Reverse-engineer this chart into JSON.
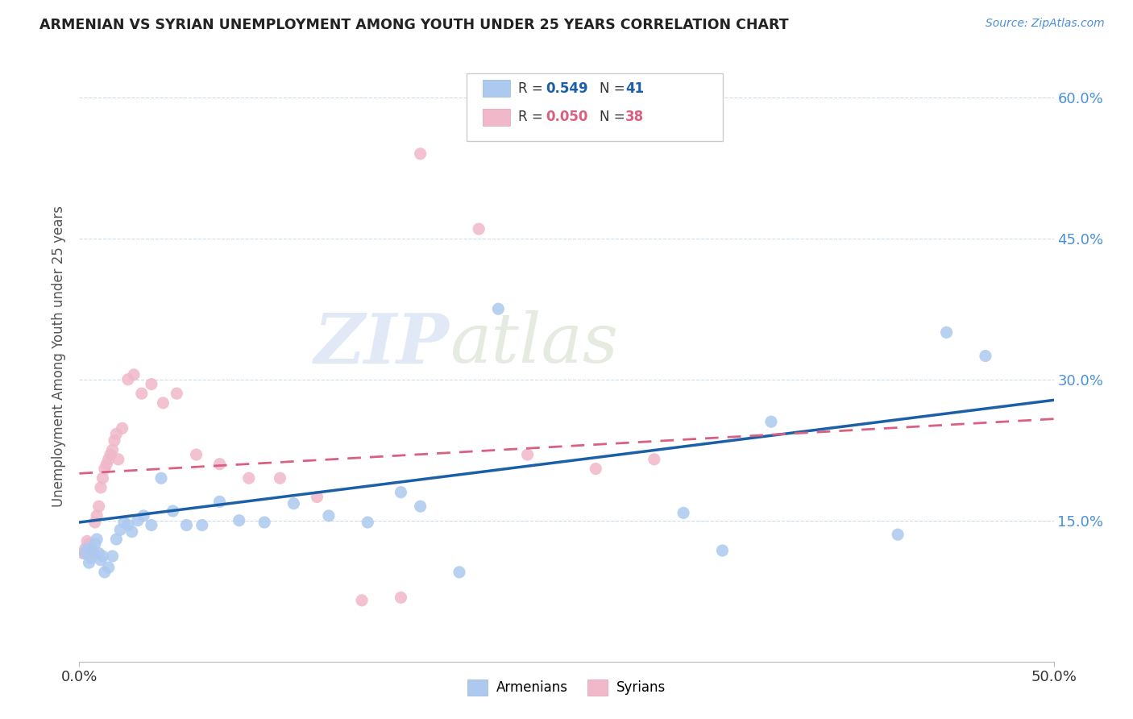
{
  "title": "ARMENIAN VS SYRIAN UNEMPLOYMENT AMONG YOUTH UNDER 25 YEARS CORRELATION CHART",
  "source": "Source: ZipAtlas.com",
  "ylabel": "Unemployment Among Youth under 25 years",
  "xlim": [
    0.0,
    0.5
  ],
  "ylim": [
    0.0,
    0.65
  ],
  "xticks": [
    0.0,
    0.5
  ],
  "xticklabels": [
    "0.0%",
    "50.0%"
  ],
  "yticks": [
    0.15,
    0.3,
    0.45,
    0.6
  ],
  "yticklabels": [
    "15.0%",
    "30.0%",
    "45.0%",
    "60.0%"
  ],
  "legend_r_armenian": "0.549",
  "legend_n_armenian": "41",
  "legend_r_syrian": "0.050",
  "legend_n_syrian": "38",
  "armenian_color": "#adc9ef",
  "syrian_color": "#f0b8c8",
  "armenian_line_color": "#1a5fa8",
  "syrian_line_color": "#d96080",
  "background_color": "#ffffff",
  "watermark_zip": "ZIP",
  "watermark_atlas": "atlas",
  "arm_line_x0": 0.0,
  "arm_line_y0": 0.148,
  "arm_line_x1": 0.5,
  "arm_line_y1": 0.278,
  "syr_line_x0": 0.0,
  "syr_line_y0": 0.2,
  "syr_line_x1": 0.5,
  "syr_line_y1": 0.258,
  "armenian_x": [
    0.003,
    0.004,
    0.005,
    0.006,
    0.007,
    0.008,
    0.009,
    0.01,
    0.011,
    0.012,
    0.013,
    0.015,
    0.017,
    0.019,
    0.021,
    0.023,
    0.025,
    0.027,
    0.03,
    0.033,
    0.037,
    0.042,
    0.048,
    0.055,
    0.063,
    0.072,
    0.082,
    0.095,
    0.11,
    0.128,
    0.148,
    0.165,
    0.175,
    0.195,
    0.215,
    0.31,
    0.33,
    0.355,
    0.42,
    0.445,
    0.465
  ],
  "armenian_y": [
    0.115,
    0.12,
    0.105,
    0.11,
    0.118,
    0.125,
    0.13,
    0.115,
    0.108,
    0.112,
    0.095,
    0.1,
    0.112,
    0.13,
    0.14,
    0.148,
    0.145,
    0.138,
    0.15,
    0.155,
    0.145,
    0.195,
    0.16,
    0.145,
    0.145,
    0.17,
    0.15,
    0.148,
    0.168,
    0.155,
    0.148,
    0.18,
    0.165,
    0.095,
    0.375,
    0.158,
    0.118,
    0.255,
    0.135,
    0.35,
    0.325
  ],
  "syrian_x": [
    0.002,
    0.003,
    0.004,
    0.005,
    0.006,
    0.007,
    0.008,
    0.009,
    0.01,
    0.011,
    0.012,
    0.013,
    0.014,
    0.015,
    0.016,
    0.017,
    0.018,
    0.019,
    0.02,
    0.022,
    0.025,
    0.028,
    0.032,
    0.037,
    0.043,
    0.05,
    0.06,
    0.072,
    0.087,
    0.103,
    0.122,
    0.145,
    0.165,
    0.175,
    0.205,
    0.23,
    0.265,
    0.295
  ],
  "syrian_y": [
    0.115,
    0.12,
    0.128,
    0.125,
    0.118,
    0.115,
    0.148,
    0.155,
    0.165,
    0.185,
    0.195,
    0.205,
    0.21,
    0.215,
    0.22,
    0.225,
    0.235,
    0.242,
    0.215,
    0.248,
    0.3,
    0.305,
    0.285,
    0.295,
    0.275,
    0.285,
    0.22,
    0.21,
    0.195,
    0.195,
    0.175,
    0.065,
    0.068,
    0.54,
    0.46,
    0.22,
    0.205,
    0.215
  ]
}
